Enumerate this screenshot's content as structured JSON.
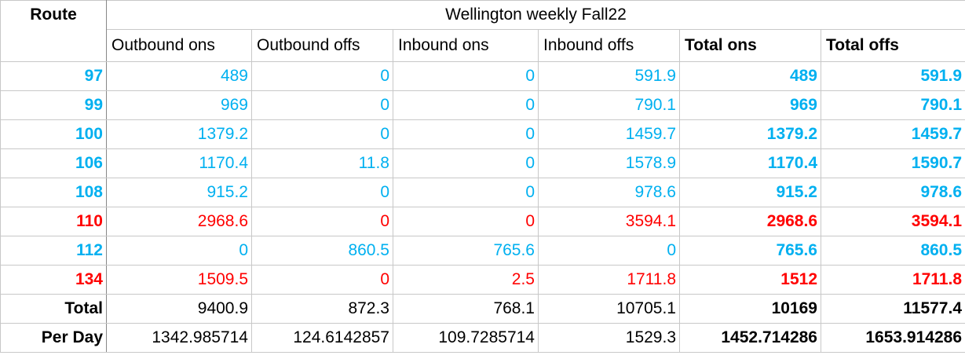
{
  "table": {
    "title": "Wellington weekly Fall22",
    "corner": "Route",
    "columns": [
      "Outbound ons",
      "Outbound offs",
      "Inbound ons",
      "Inbound offs",
      "Total ons",
      "Total offs"
    ],
    "bold_columns": [
      4,
      5
    ],
    "rows": [
      {
        "route": "97",
        "color": "#00b0f0",
        "cells": [
          489,
          0,
          0,
          591.9,
          489,
          591.9
        ]
      },
      {
        "route": "99",
        "color": "#00b0f0",
        "cells": [
          969,
          0,
          0,
          790.1,
          969,
          790.1
        ]
      },
      {
        "route": "100",
        "color": "#00b0f0",
        "cells": [
          1379.2,
          0,
          0,
          1459.7,
          1379.2,
          1459.7
        ]
      },
      {
        "route": "106",
        "color": "#00b0f0",
        "cells": [
          1170.4,
          11.8,
          0,
          1578.9,
          1170.4,
          1590.7
        ]
      },
      {
        "route": "108",
        "color": "#00b0f0",
        "cells": [
          915.2,
          0,
          0,
          978.6,
          915.2,
          978.6
        ]
      },
      {
        "route": "110",
        "color": "#ff0000",
        "cells": [
          2968.6,
          0,
          0,
          3594.1,
          2968.6,
          3594.1
        ]
      },
      {
        "route": "112",
        "color": "#00b0f0",
        "cells": [
          0,
          860.5,
          765.6,
          0,
          765.6,
          860.5
        ]
      },
      {
        "route": "134",
        "color": "#ff0000",
        "cells": [
          1509.5,
          0,
          2.5,
          1711.8,
          1512,
          1711.8
        ]
      },
      {
        "route": "Total",
        "color": "#000000",
        "cells": [
          9400.9,
          872.3,
          768.1,
          10705.1,
          10169,
          11577.4
        ]
      },
      {
        "route": "Per Day",
        "color": "#000000",
        "cells": [
          1342.985714,
          124.6142857,
          109.7285714,
          1529.3,
          1452.714286,
          1653.914286
        ]
      }
    ]
  }
}
